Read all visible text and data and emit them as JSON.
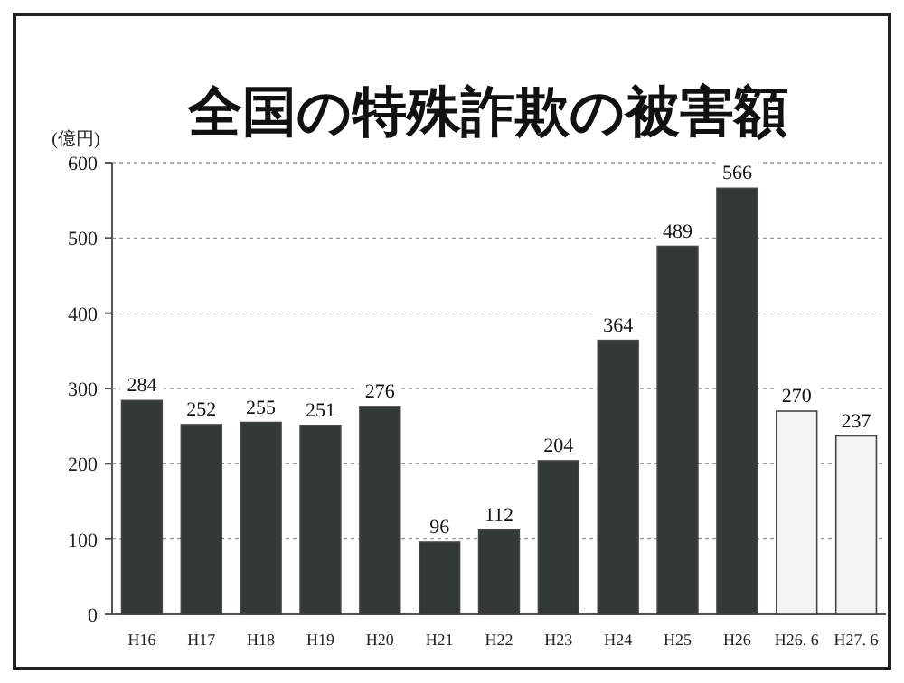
{
  "chart_data": {
    "type": "bar",
    "title": "全国の特殊詐欺の被害額",
    "ylabel": "(億円)",
    "categories": [
      "H16",
      "H17",
      "H18",
      "H19",
      "H20",
      "H21",
      "H22",
      "H23",
      "H24",
      "H25",
      "H26",
      "H26. 6",
      "H27. 6"
    ],
    "values": [
      284,
      252,
      255,
      251,
      276,
      96,
      112,
      204,
      364,
      489,
      566,
      270,
      237
    ],
    "colors": [
      "#333a36",
      "#333a36",
      "#333a36",
      "#333a36",
      "#333a36",
      "#333a36",
      "#333a36",
      "#333a36",
      "#333a36",
      "#333a36",
      "#333a36",
      "#f2f4f2",
      "#f2f4f2"
    ],
    "ylim": [
      0,
      600
    ],
    "yticks": [
      0,
      100,
      200,
      300,
      400,
      500,
      600
    ],
    "grid": "y",
    "data_labels": true
  }
}
